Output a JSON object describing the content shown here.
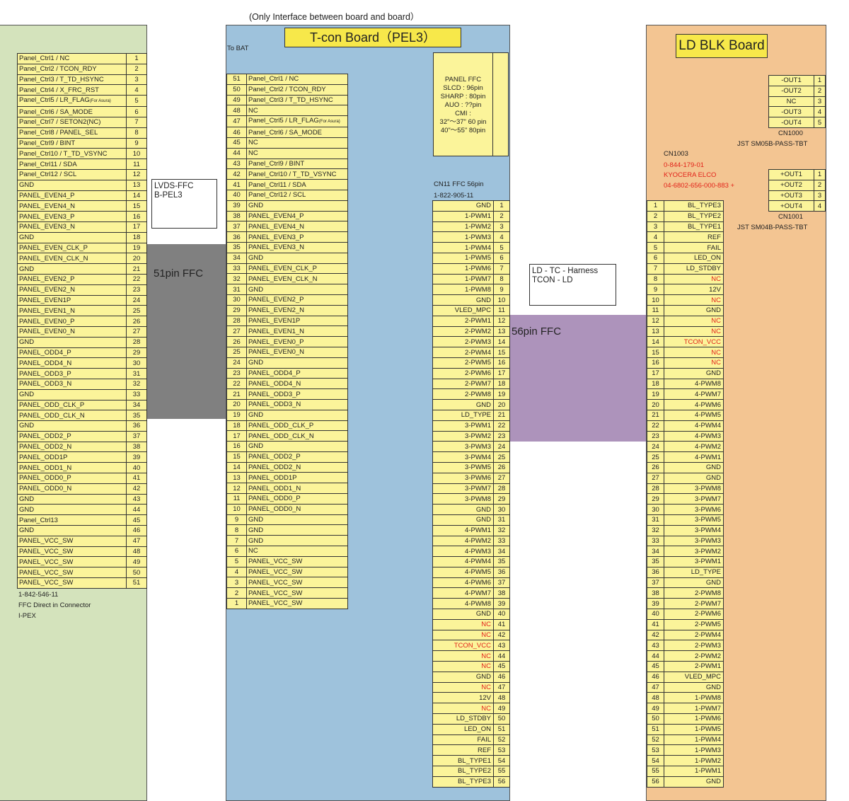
{
  "header": {
    "caption": "(Only  Interface between board and board）"
  },
  "colors": {
    "left_board": "#d4e3bc",
    "tcon_board": "#9ec2dc",
    "ld_board": "#f3c592",
    "pin_cell": "#fbf49a",
    "title": "#f7e84a",
    "ffc51": "#808080",
    "ffc56": "#ad93bb",
    "red_text": "#e2231a"
  },
  "left_board": {
    "pins": [
      {
        "n": "1",
        "label": "Panel_Ctrl1 / NC"
      },
      {
        "n": "2",
        "label": "Panel_Ctrl2 / TCON_RDY"
      },
      {
        "n": "3",
        "label": "Panel_Ctrl3 / T_TD_HSYNC"
      },
      {
        "n": "4",
        "label": "Panel_Ctrl4 / X_FRC_RST"
      },
      {
        "n": "5",
        "label": "Panel_Ctrl5 / LR_FLAG",
        "note": "(For Asura)"
      },
      {
        "n": "6",
        "label": "Panel_Ctrl6 / SA_MODE"
      },
      {
        "n": "7",
        "label": "Panel_Ctrl7 / SETON2(NC)"
      },
      {
        "n": "8",
        "label": "Panel_Ctrl8 / PANEL_SEL"
      },
      {
        "n": "9",
        "label": "Panel_Ctrl9 / BINT"
      },
      {
        "n": "10",
        "label": "Panel_Ctrl10 / T_TD_VSYNC"
      },
      {
        "n": "11",
        "label": "Panel_Ctrl11 / SDA"
      },
      {
        "n": "12",
        "label": "Panel_Ctrl12 / SCL"
      },
      {
        "n": "13",
        "label": "GND"
      },
      {
        "n": "14",
        "label": "PANEL_EVEN4_P"
      },
      {
        "n": "15",
        "label": "PANEL_EVEN4_N"
      },
      {
        "n": "16",
        "label": "PANEL_EVEN3_P"
      },
      {
        "n": "17",
        "label": "PANEL_EVEN3_N"
      },
      {
        "n": "18",
        "label": "GND"
      },
      {
        "n": "19",
        "label": "PANEL_EVEN_CLK_P"
      },
      {
        "n": "20",
        "label": "PANEL_EVEN_CLK_N"
      },
      {
        "n": "21",
        "label": "GND"
      },
      {
        "n": "22",
        "label": "PANEL_EVEN2_P"
      },
      {
        "n": "23",
        "label": "PANEL_EVEN2_N"
      },
      {
        "n": "24",
        "label": "PANEL_EVEN1P"
      },
      {
        "n": "25",
        "label": "PANEL_EVEN1_N"
      },
      {
        "n": "26",
        "label": "PANEL_EVEN0_P"
      },
      {
        "n": "27",
        "label": "PANEL_EVEN0_N"
      },
      {
        "n": "28",
        "label": "GND"
      },
      {
        "n": "29",
        "label": "PANEL_ODD4_P"
      },
      {
        "n": "30",
        "label": "PANEL_ODD4_N"
      },
      {
        "n": "31",
        "label": "PANEL_ODD3_P"
      },
      {
        "n": "32",
        "label": "PANEL_ODD3_N"
      },
      {
        "n": "33",
        "label": "GND"
      },
      {
        "n": "34",
        "label": "PANEL_ODD_CLK_P"
      },
      {
        "n": "35",
        "label": "PANEL_ODD_CLK_N"
      },
      {
        "n": "36",
        "label": "GND"
      },
      {
        "n": "37",
        "label": "PANEL_ODD2_P"
      },
      {
        "n": "38",
        "label": "PANEL_ODD2_N"
      },
      {
        "n": "39",
        "label": "PANEL_ODD1P"
      },
      {
        "n": "40",
        "label": "PANEL_ODD1_N"
      },
      {
        "n": "41",
        "label": "PANEL_ODD0_P"
      },
      {
        "n": "42",
        "label": "PANEL_ODD0_N"
      },
      {
        "n": "43",
        "label": "GND"
      },
      {
        "n": "44",
        "label": "GND"
      },
      {
        "n": "45",
        "label": "Panel_Ctrl13"
      },
      {
        "n": "46",
        "label": "GND"
      },
      {
        "n": "47",
        "label": "PANEL_VCC_SW"
      },
      {
        "n": "48",
        "label": "PANEL_VCC_SW"
      },
      {
        "n": "49",
        "label": "PANEL_VCC_SW"
      },
      {
        "n": "50",
        "label": "PANEL_VCC_SW"
      },
      {
        "n": "51",
        "label": "PANEL_VCC_SW"
      }
    ],
    "footer_line1": "1-842-546-11",
    "footer_line2": "FFC Direct in Connector",
    "footer_line3": "I-PEX"
  },
  "lvds_note": {
    "line1": "LVDS-FFC",
    "line2": "B-PEL3"
  },
  "ffc51_label": "51pin FFC",
  "tcon_board": {
    "title": "T-con Board（PEL3）",
    "to_bat": "To BAT",
    "pins": [
      {
        "n": "51",
        "label": "Panel_Ctrl1 / NC"
      },
      {
        "n": "50",
        "label": "Panel_Ctrl2 / TCON_RDY"
      },
      {
        "n": "49",
        "label": "Panel_Ctrl3 / T_TD_HSYNC"
      },
      {
        "n": "48",
        "label": "NC"
      },
      {
        "n": "47",
        "label": "Panel_Ctrl5 / LR_FLAG",
        "note": "(For Asura)"
      },
      {
        "n": "46",
        "label": "Panel_Ctrl6 / SA_MODE"
      },
      {
        "n": "45",
        "label": "NC"
      },
      {
        "n": "44",
        "label": "NC"
      },
      {
        "n": "43",
        "label": "Panel_Ctrl9 / BINT"
      },
      {
        "n": "42",
        "label": "Panel_Ctrl10 / T_TD_VSYNC"
      },
      {
        "n": "41",
        "label": "Panel_Ctrl11 / SDA"
      },
      {
        "n": "40",
        "label": "Panel_Ctrl12 / SCL"
      },
      {
        "n": "39",
        "label": "GND"
      },
      {
        "n": "38",
        "label": "PANEL_EVEN4_P"
      },
      {
        "n": "37",
        "label": "PANEL_EVEN4_N"
      },
      {
        "n": "36",
        "label": "PANEL_EVEN3_P"
      },
      {
        "n": "35",
        "label": "PANEL_EVEN3_N"
      },
      {
        "n": "34",
        "label": "GND"
      },
      {
        "n": "33",
        "label": "PANEL_EVEN_CLK_P"
      },
      {
        "n": "32",
        "label": "PANEL_EVEN_CLK_N"
      },
      {
        "n": "31",
        "label": "GND"
      },
      {
        "n": "30",
        "label": "PANEL_EVEN2_P"
      },
      {
        "n": "29",
        "label": "PANEL_EVEN2_N"
      },
      {
        "n": "28",
        "label": "PANEL_EVEN1P"
      },
      {
        "n": "27",
        "label": "PANEL_EVEN1_N"
      },
      {
        "n": "26",
        "label": "PANEL_EVEN0_P"
      },
      {
        "n": "25",
        "label": "PANEL_EVEN0_N"
      },
      {
        "n": "24",
        "label": "GND"
      },
      {
        "n": "23",
        "label": "PANEL_ODD4_P"
      },
      {
        "n": "22",
        "label": "PANEL_ODD4_N"
      },
      {
        "n": "21",
        "label": "PANEL_ODD3_P"
      },
      {
        "n": "20",
        "label": "PANEL_ODD3_N"
      },
      {
        "n": "19",
        "label": "GND"
      },
      {
        "n": "18",
        "label": "PANEL_ODD_CLK_P"
      },
      {
        "n": "17",
        "label": "PANEL_ODD_CLK_N"
      },
      {
        "n": "16",
        "label": "GND"
      },
      {
        "n": "15",
        "label": "PANEL_ODD2_P"
      },
      {
        "n": "14",
        "label": "PANEL_ODD2_N"
      },
      {
        "n": "13",
        "label": "PANEL_ODD1P"
      },
      {
        "n": "12",
        "label": "PANEL_ODD1_N"
      },
      {
        "n": "11",
        "label": "PANEL_ODD0_P"
      },
      {
        "n": "10",
        "label": "PANEL_ODD0_N"
      },
      {
        "n": "9",
        "label": "GND"
      },
      {
        "n": "8",
        "label": "GND"
      },
      {
        "n": "7",
        "label": "GND"
      },
      {
        "n": "6",
        "label": "NC"
      },
      {
        "n": "5",
        "label": "PANEL_VCC_SW"
      },
      {
        "n": "4",
        "label": "PANEL_VCC_SW"
      },
      {
        "n": "3",
        "label": "PANEL_VCC_SW"
      },
      {
        "n": "2",
        "label": "PANEL_VCC_SW"
      },
      {
        "n": "1",
        "label": "PANEL_VCC_SW"
      }
    ],
    "panel_ffc": [
      "PANEL FFC",
      "SLCD : 96pin",
      "SHARP : 80pin",
      "AUO : ??pin",
      "CMI :",
      "32\"～37\" 60 pin",
      "40\"～55\" 80pin"
    ],
    "cn11_line1": "CN11  FFC 56pin",
    "cn11_line2": "1-822-905-11",
    "cn11_pins": [
      {
        "n": "1",
        "label": "GND"
      },
      {
        "n": "2",
        "label": "1-PWM1"
      },
      {
        "n": "3",
        "label": "1-PWM2"
      },
      {
        "n": "4",
        "label": "1-PWM3"
      },
      {
        "n": "5",
        "label": "1-PWM4"
      },
      {
        "n": "6",
        "label": "1-PWM5"
      },
      {
        "n": "7",
        "label": "1-PWM6"
      },
      {
        "n": "8",
        "label": "1-PWM7"
      },
      {
        "n": "9",
        "label": "1-PWM8"
      },
      {
        "n": "10",
        "label": "GND"
      },
      {
        "n": "11",
        "label": "VLED_MPC"
      },
      {
        "n": "12",
        "label": "2-PWM1"
      },
      {
        "n": "13",
        "label": "2-PWM2"
      },
      {
        "n": "14",
        "label": "2-PWM3"
      },
      {
        "n": "15",
        "label": "2-PWM4"
      },
      {
        "n": "16",
        "label": "2-PWM5"
      },
      {
        "n": "17",
        "label": "2-PWM6"
      },
      {
        "n": "18",
        "label": "2-PWM7"
      },
      {
        "n": "19",
        "label": "2-PWM8"
      },
      {
        "n": "20",
        "label": "GND"
      },
      {
        "n": "21",
        "label": "LD_TYPE"
      },
      {
        "n": "22",
        "label": "3-PWM1"
      },
      {
        "n": "23",
        "label": "3-PWM2"
      },
      {
        "n": "24",
        "label": "3-PWM3"
      },
      {
        "n": "25",
        "label": "3-PWM4"
      },
      {
        "n": "26",
        "label": "3-PWM5"
      },
      {
        "n": "27",
        "label": "3-PWM6"
      },
      {
        "n": "28",
        "label": "3-PWM7"
      },
      {
        "n": "29",
        "label": "3-PWM8"
      },
      {
        "n": "30",
        "label": "GND"
      },
      {
        "n": "31",
        "label": "GND"
      },
      {
        "n": "32",
        "label": "4-PWM1"
      },
      {
        "n": "33",
        "label": "4-PWM2"
      },
      {
        "n": "34",
        "label": "4-PWM3"
      },
      {
        "n": "35",
        "label": "4-PWM4"
      },
      {
        "n": "36",
        "label": "4-PWM5"
      },
      {
        "n": "37",
        "label": "4-PWM6"
      },
      {
        "n": "38",
        "label": "4-PWM7"
      },
      {
        "n": "39",
        "label": "4-PWM8"
      },
      {
        "n": "40",
        "label": "GND"
      },
      {
        "n": "41",
        "label": "NC",
        "red": true
      },
      {
        "n": "42",
        "label": "NC",
        "red": true
      },
      {
        "n": "43",
        "label": "TCON_VCC",
        "red": true
      },
      {
        "n": "44",
        "label": "NC",
        "red": true
      },
      {
        "n": "45",
        "label": "NC",
        "red": true
      },
      {
        "n": "46",
        "label": "GND"
      },
      {
        "n": "47",
        "label": "NC",
        "red": true
      },
      {
        "n": "48",
        "label": "12V"
      },
      {
        "n": "49",
        "label": "NC",
        "red": true
      },
      {
        "n": "50",
        "label": "LD_STDBY"
      },
      {
        "n": "51",
        "label": "LED_ON"
      },
      {
        "n": "52",
        "label": "FAIL"
      },
      {
        "n": "53",
        "label": "REF"
      },
      {
        "n": "54",
        "label": "BL_TYPE1"
      },
      {
        "n": "55",
        "label": "BL_TYPE2"
      },
      {
        "n": "56",
        "label": "BL_TYPE3"
      }
    ]
  },
  "harness_note": {
    "line1": "LD - TC - Harness",
    "line2": "TCON - LD"
  },
  "ffc56_label": "56pin FFC",
  "ld_board": {
    "title": "LD BLK Board",
    "cn1000_pins": [
      {
        "n": "1",
        "label": "-OUT1"
      },
      {
        "n": "2",
        "label": "-OUT2"
      },
      {
        "n": "3",
        "label": "NC"
      },
      {
        "n": "4",
        "label": "-OUT3"
      },
      {
        "n": "5",
        "label": "-OUT4"
      }
    ],
    "cn1000_name": "CN1000",
    "cn1000_part": "JST  SM05B-PASS-TBT",
    "cn1003_name": "CN1003",
    "cn1003_part": "0-844-179-01",
    "cn1003_maker": "KYOCERA ELCO",
    "cn1003_code": "04-6802-656-000-883 +",
    "cn1001_pins": [
      {
        "n": "1",
        "label": "+OUT1"
      },
      {
        "n": "2",
        "label": "+OUT2"
      },
      {
        "n": "3",
        "label": "+OUT3"
      },
      {
        "n": "4",
        "label": "+OUT4"
      }
    ],
    "cn1001_name": "CN1001",
    "cn1001_part": "JST  SM04B-PASS-TBT",
    "cn1003_pins": [
      {
        "n": "1",
        "label": "BL_TYPE3"
      },
      {
        "n": "2",
        "label": "BL_TYPE2"
      },
      {
        "n": "3",
        "label": "BL_TYPE1"
      },
      {
        "n": "4",
        "label": "REF"
      },
      {
        "n": "5",
        "label": "FAIL"
      },
      {
        "n": "6",
        "label": "LED_ON"
      },
      {
        "n": "7",
        "label": "LD_STDBY"
      },
      {
        "n": "8",
        "label": "NC",
        "red": true
      },
      {
        "n": "9",
        "label": "12V"
      },
      {
        "n": "10",
        "label": "NC",
        "red": true
      },
      {
        "n": "11",
        "label": "GND"
      },
      {
        "n": "12",
        "label": "NC",
        "red": true
      },
      {
        "n": "13",
        "label": "NC",
        "red": true
      },
      {
        "n": "14",
        "label": "TCON_VCC",
        "red": true
      },
      {
        "n": "15",
        "label": "NC",
        "red": true
      },
      {
        "n": "16",
        "label": "NC",
        "red": true
      },
      {
        "n": "17",
        "label": "GND"
      },
      {
        "n": "18",
        "label": "4-PWM8"
      },
      {
        "n": "19",
        "label": "4-PWM7"
      },
      {
        "n": "20",
        "label": "4-PWM6"
      },
      {
        "n": "21",
        "label": "4-PWM5"
      },
      {
        "n": "22",
        "label": "4-PWM4"
      },
      {
        "n": "23",
        "label": "4-PWM3"
      },
      {
        "n": "24",
        "label": "4-PWM2"
      },
      {
        "n": "25",
        "label": "4-PWM1"
      },
      {
        "n": "26",
        "label": "GND"
      },
      {
        "n": "27",
        "label": "GND"
      },
      {
        "n": "28",
        "label": "3-PWM8"
      },
      {
        "n": "29",
        "label": "3-PWM7"
      },
      {
        "n": "30",
        "label": "3-PWM6"
      },
      {
        "n": "31",
        "label": "3-PWM5"
      },
      {
        "n": "32",
        "label": "3-PWM4"
      },
      {
        "n": "33",
        "label": "3-PWM3"
      },
      {
        "n": "34",
        "label": "3-PWM2"
      },
      {
        "n": "35",
        "label": "3-PWM1"
      },
      {
        "n": "36",
        "label": "LD_TYPE"
      },
      {
        "n": "37",
        "label": "GND"
      },
      {
        "n": "38",
        "label": "2-PWM8"
      },
      {
        "n": "39",
        "label": "2-PWM7"
      },
      {
        "n": "40",
        "label": "2-PWM6"
      },
      {
        "n": "41",
        "label": "2-PWM5"
      },
      {
        "n": "42",
        "label": "2-PWM4"
      },
      {
        "n": "43",
        "label": "2-PWM3"
      },
      {
        "n": "44",
        "label": "2-PWM2"
      },
      {
        "n": "45",
        "label": "2-PWM1"
      },
      {
        "n": "46",
        "label": "VLED_MPC"
      },
      {
        "n": "47",
        "label": "GND"
      },
      {
        "n": "48",
        "label": "1-PWM8"
      },
      {
        "n": "49",
        "label": "1-PWM7"
      },
      {
        "n": "50",
        "label": "1-PWM6"
      },
      {
        "n": "51",
        "label": "1-PWM5"
      },
      {
        "n": "52",
        "label": "1-PWM4"
      },
      {
        "n": "53",
        "label": "1-PWM3"
      },
      {
        "n": "54",
        "label": "1-PWM2"
      },
      {
        "n": "55",
        "label": "1-PWM1"
      },
      {
        "n": "56",
        "label": "GND"
      }
    ]
  }
}
